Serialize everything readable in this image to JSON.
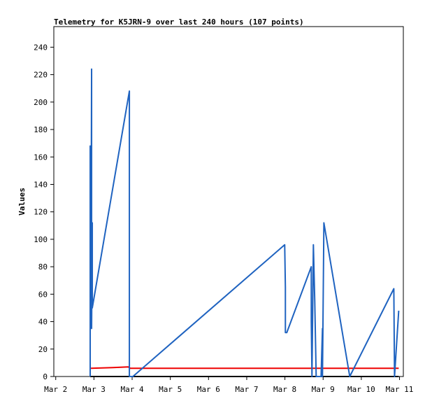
{
  "chart_data": {
    "type": "line",
    "title": "Telemetry for K5JRN-9 over last 240 hours (107 points)",
    "y_label": "Values",
    "xlim": [
      1.95,
      11.1
    ],
    "xticks": [
      {
        "value": 2,
        "label": "Mar 2"
      },
      {
        "value": 3,
        "label": "Mar 3"
      },
      {
        "value": 4,
        "label": "Mar 4"
      },
      {
        "value": 5,
        "label": "Mar 5"
      },
      {
        "value": 6,
        "label": "Mar 6"
      },
      {
        "value": 7,
        "label": "Mar 7"
      },
      {
        "value": 8,
        "label": "Mar 8"
      },
      {
        "value": 9,
        "label": "Mar 9"
      },
      {
        "value": 10,
        "label": "Mar 10"
      },
      {
        "value": 11,
        "label": "Mar 11"
      }
    ],
    "ylim": [
      0,
      255
    ],
    "yticks": [
      0,
      20,
      40,
      60,
      80,
      100,
      120,
      140,
      160,
      180,
      200,
      220,
      240
    ],
    "grid": false,
    "series": [
      {
        "color": "#000000",
        "x": [
          2.902,
          10.979
        ],
        "values": [
          0,
          0
        ]
      },
      {
        "color": "#ee0000",
        "x": [
          2.921,
          3.5,
          3.9,
          3.95,
          10.979
        ],
        "values": [
          6,
          6.5,
          7,
          6,
          6
        ]
      },
      {
        "color": "#1f63c0",
        "x": [
          2.902,
          2.902,
          2.921,
          2.939,
          2.939,
          2.957,
          2.957,
          3.928,
          3.928,
          4.02,
          7.994,
          8.012,
          8.012,
          8.049,
          8.69,
          8.69,
          8.708,
          8.745,
          8.781,
          8.818,
          8.946,
          8.983,
          8.983,
          9.02,
          9.697,
          10.851,
          10.869,
          10.979
        ],
        "values": [
          0,
          168,
          55,
          224,
          35,
          112,
          50,
          208,
          0,
          0,
          96,
          65,
          32,
          32,
          80,
          40,
          0,
          96,
          55,
          0,
          0,
          35,
          0,
          112,
          0,
          64,
          0,
          48
        ]
      }
    ]
  }
}
